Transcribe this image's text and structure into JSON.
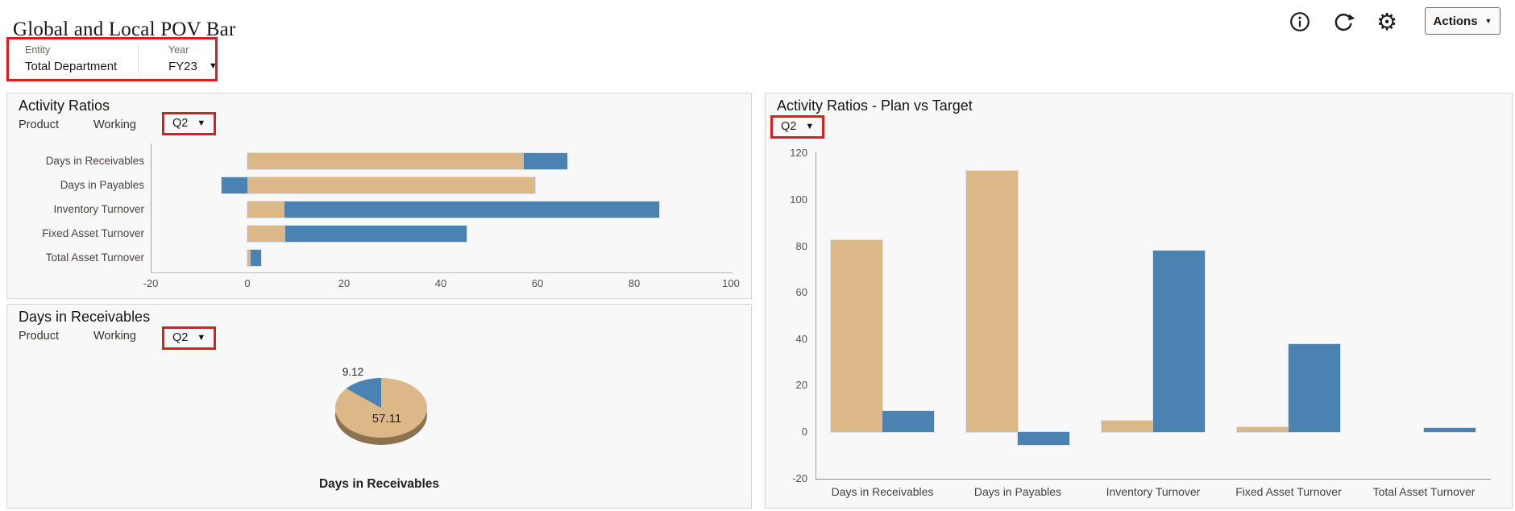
{
  "header": {
    "title": "Global and Local POV Bar",
    "actions_label": "Actions",
    "toolbar_icons": [
      "info-icon",
      "refresh-icon",
      "settings-icon"
    ]
  },
  "pov": {
    "entity_label": "Entity",
    "entity_value": "Total Department",
    "year_label": "Year",
    "year_value": "FY23"
  },
  "panels": {
    "activity_ratios": {
      "title": "Activity Ratios",
      "pov_product": "Product",
      "pov_version": "Working",
      "quarter": "Q2"
    },
    "days_in_receivables": {
      "title": "Days in Receivables",
      "pov_product": "Product",
      "pov_version": "Working",
      "quarter": "Q2",
      "footer_label": "Days in Receivables"
    },
    "plan_vs_target": {
      "title": "Activity Ratios - Plan vs Target",
      "quarter": "Q2"
    }
  },
  "colors": {
    "tan": "#dcb888",
    "blue": "#4a82b2",
    "pie_rim": "#8b734f",
    "highlight_red": "#d9201f"
  },
  "chart_data": [
    {
      "id": "activity-ratios",
      "type": "bar",
      "orientation": "horizontal",
      "stacked": true,
      "categories": [
        "Days in Receivables",
        "Days in Payables",
        "Inventory Turnover",
        "Fixed Asset Turnover",
        "Total Asset Turnover"
      ],
      "series": [
        {
          "name": "series-tan",
          "color": "#dcb888",
          "values": [
            57.11,
            59.5,
            7.6,
            7.8,
            0.7
          ]
        },
        {
          "name": "series-blue",
          "color": "#4a82b2",
          "values": [
            9.12,
            -5.3,
            77.5,
            37.5,
            2.1
          ]
        }
      ],
      "xlim": [
        -20,
        100
      ],
      "xticks": [
        -20,
        0,
        20,
        40,
        60,
        80,
        100
      ],
      "grid": false,
      "legend": "none"
    },
    {
      "id": "days-in-receivables",
      "type": "pie",
      "title": "Days in Receivables",
      "effect": "3d",
      "slices": [
        {
          "label": "57.11",
          "value": 57.11,
          "color": "#dcb888"
        },
        {
          "label": "9.12",
          "value": 9.12,
          "color": "#4a82b2"
        }
      ]
    },
    {
      "id": "plan-vs-target",
      "type": "bar",
      "orientation": "vertical",
      "stacked": false,
      "categories": [
        "Days in Receivables",
        "Days in Payables",
        "Inventory Turnover",
        "Fixed Asset Turnover",
        "Total Asset Turnover"
      ],
      "series": [
        {
          "name": "series-tan",
          "color": "#dcb888",
          "values": [
            82.5,
            112.5,
            5,
            2,
            0
          ]
        },
        {
          "name": "series-blue",
          "color": "#4a82b2",
          "values": [
            9.12,
            -5.5,
            78,
            38,
            1.7
          ]
        }
      ],
      "ylim": [
        -20,
        120
      ],
      "yticks": [
        120,
        100,
        80,
        60,
        40,
        20,
        0,
        -20
      ],
      "grid": false,
      "legend": "none"
    }
  ]
}
